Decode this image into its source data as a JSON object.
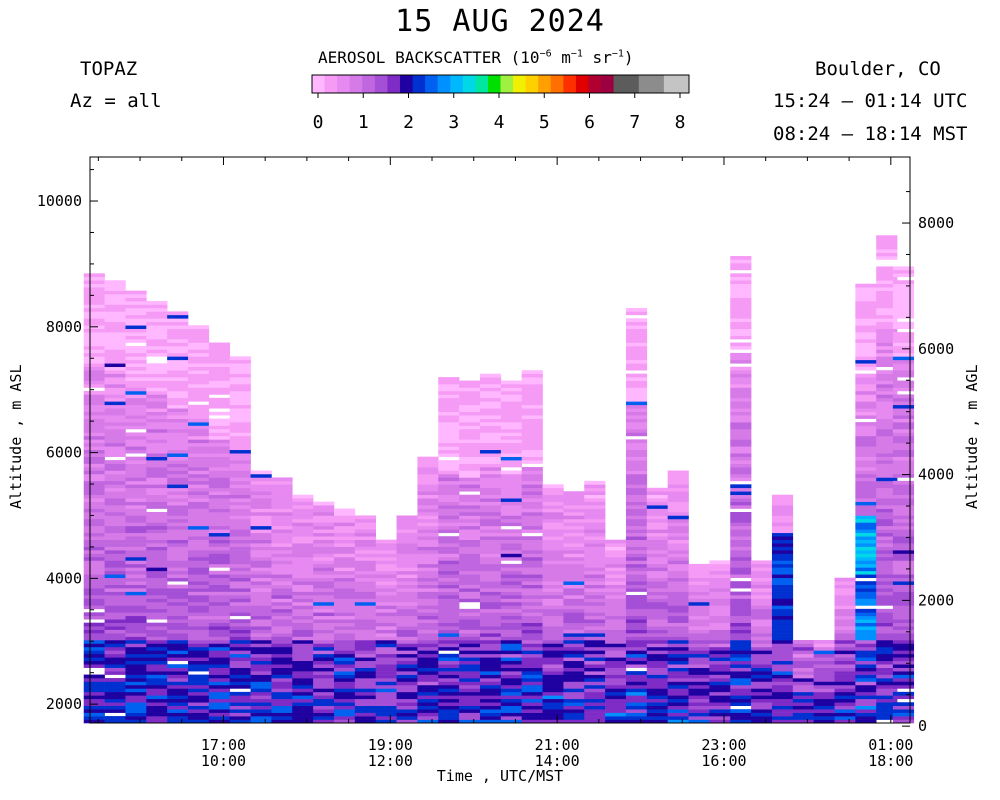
{
  "header": {
    "title": "15 AUG 2024",
    "instrument": "TOPAZ",
    "azimuth": "Az = all",
    "location": "Boulder, CO",
    "utc_range": "15:24 – 01:14 UTC",
    "mst_range": "08:24 – 18:14 MST"
  },
  "colorbar": {
    "title_prefix": "AEROSOL BACKSCATTER (10",
    "exp1": "−6",
    "unit_mid": " m",
    "exp2": "−1",
    "unit_end": " sr",
    "exp3": "−1",
    "title_suffix": ")",
    "ticks": [
      "0",
      "1",
      "2",
      "3",
      "4",
      "5",
      "6",
      "7",
      "8"
    ],
    "colors": [
      "#ffb8ff",
      "#f59af5",
      "#e689f0",
      "#d67ae8",
      "#c067e0",
      "#a44fd6",
      "#7f2cc7",
      "#1f00a0",
      "#0030d0",
      "#0060f0",
      "#0090ff",
      "#00b8ff",
      "#00d8e8",
      "#00e8a0",
      "#00e000",
      "#a0f040",
      "#f0f000",
      "#ffd000",
      "#ffa000",
      "#ff7000",
      "#ff3000",
      "#e00000",
      "#b00030",
      "#9c0040",
      "#5c5c5c",
      "#5c5c5c",
      "#8c8c8c",
      "#8c8c8c",
      "#c4c4c4",
      "#c4c4c4"
    ]
  },
  "chart_data": {
    "type": "heatmap",
    "title": "15 AUG 2024",
    "xlabel": "Time , UTC/MST",
    "ylabel_left": "Altitude , m ASL",
    "ylabel_right": "Altitude , m AGL",
    "x_ticks_utc": [
      "17:00",
      "19:00",
      "21:00",
      "23:00",
      "01:00"
    ],
    "x_ticks_mst": [
      "10:00",
      "12:00",
      "14:00",
      "16:00",
      "18:00"
    ],
    "x_range_utc_hours": [
      15.4,
      25.23
    ],
    "y_left_ticks": [
      "2000",
      "4000",
      "6000",
      "8000",
      "10000"
    ],
    "y_left_range": [
      1700,
      10700
    ],
    "y_right_ticks": [
      "0",
      "2000",
      "4000",
      "6000",
      "8000"
    ],
    "ground_altitude_m_asl": 1650,
    "value_units": "10^-6 m^-1 sr^-1",
    "value_range": [
      0,
      8
    ],
    "profiles": [
      {
        "t": 15.45,
        "top": 8850
      },
      {
        "t": 15.7,
        "top": 8700
      },
      {
        "t": 15.95,
        "top": 8550
      },
      {
        "t": 16.2,
        "top": 8400
      },
      {
        "t": 16.45,
        "top": 8200
      },
      {
        "t": 16.7,
        "top": 8000
      },
      {
        "t": 16.95,
        "top": 7700
      },
      {
        "t": 17.2,
        "top": 7500
      },
      {
        "t": 17.45,
        "top": 5700
      },
      {
        "t": 17.7,
        "top": 5600
      },
      {
        "t": 17.95,
        "top": 5300
      },
      {
        "t": 18.2,
        "top": 5200
      },
      {
        "t": 18.45,
        "top": 5100
      },
      {
        "t": 18.7,
        "top": 4950
      },
      {
        "t": 18.95,
        "top": 4600
      },
      {
        "t": 19.2,
        "top": 5000
      },
      {
        "t": 19.45,
        "top": 5900
      },
      {
        "t": 19.7,
        "top": 7150
      },
      {
        "t": 19.95,
        "top": 7100
      },
      {
        "t": 20.2,
        "top": 7250
      },
      {
        "t": 20.45,
        "top": 7150
      },
      {
        "t": 20.7,
        "top": 7300
      },
      {
        "t": 20.95,
        "top": 5450
      },
      {
        "t": 21.2,
        "top": 5350
      },
      {
        "t": 21.45,
        "top": 5500
      },
      {
        "t": 21.7,
        "top": 4600
      },
      {
        "t": 21.95,
        "top": 8300
      },
      {
        "t": 22.2,
        "top": 5400
      },
      {
        "t": 22.45,
        "top": 5700
      },
      {
        "t": 22.7,
        "top": 4200
      },
      {
        "t": 22.95,
        "top": 4250
      },
      {
        "t": 23.2,
        "top": 9100
      },
      {
        "t": 23.45,
        "top": 4250
      },
      {
        "t": 23.7,
        "top": 5300
      },
      {
        "t": 23.95,
        "top": 3000
      },
      {
        "t": 24.2,
        "top": 3000
      },
      {
        "t": 24.45,
        "top": 4000
      },
      {
        "t": 24.7,
        "top": 8650
      },
      {
        "t": 24.95,
        "top": 9450
      },
      {
        "t": 25.15,
        "top": 8950
      }
    ]
  }
}
